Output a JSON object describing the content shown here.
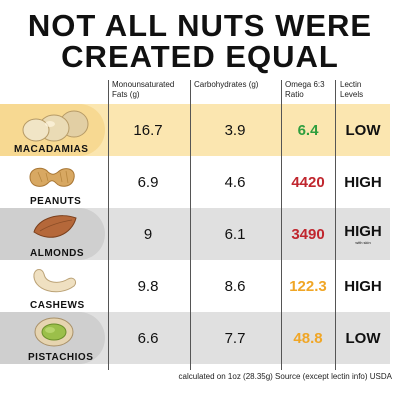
{
  "title": {
    "line1": "NOT ALL NUTS WERE",
    "line2": "CREATED EQUAL"
  },
  "columns": [
    {
      "line1": "Monounsaturated",
      "line2": "Fats (g)"
    },
    {
      "line1": "Carbohydrates (g)",
      "line2": ""
    },
    {
      "line1": "Omega 6:3",
      "line2": "Ratio"
    },
    {
      "line1": "Lectin",
      "line2": "Levels"
    }
  ],
  "rows": [
    {
      "name": "MACADAMIAS",
      "mono": "16.7",
      "carbs": "3.9",
      "ratio": "6.4",
      "ratio_color": "#2e9e3e",
      "lectin": "LOW",
      "lectin_note": ""
    },
    {
      "name": "PEANUTS",
      "mono": "6.9",
      "carbs": "4.6",
      "ratio": "4420",
      "ratio_color": "#c0262e",
      "lectin": "HIGH",
      "lectin_note": ""
    },
    {
      "name": "ALMONDS",
      "mono": "9",
      "carbs": "6.1",
      "ratio": "3490",
      "ratio_color": "#c0262e",
      "lectin": "HIGH",
      "lectin_note": "with skin"
    },
    {
      "name": "CASHEWS",
      "mono": "9.8",
      "carbs": "8.6",
      "ratio": "122.3",
      "ratio_color": "#f0a626",
      "lectin": "HIGH",
      "lectin_note": ""
    },
    {
      "name": "PISTACHIOS",
      "mono": "6.6",
      "carbs": "7.7",
      "ratio": "48.8",
      "ratio_color": "#f0a626",
      "lectin": "LOW",
      "lectin_note": ""
    }
  ],
  "footer": "calculated on 1oz (28.35g) Source (except lectin info) USDA",
  "colors": {
    "highlight": "#fbe6b0",
    "grey_row": "#e0e0e0"
  }
}
